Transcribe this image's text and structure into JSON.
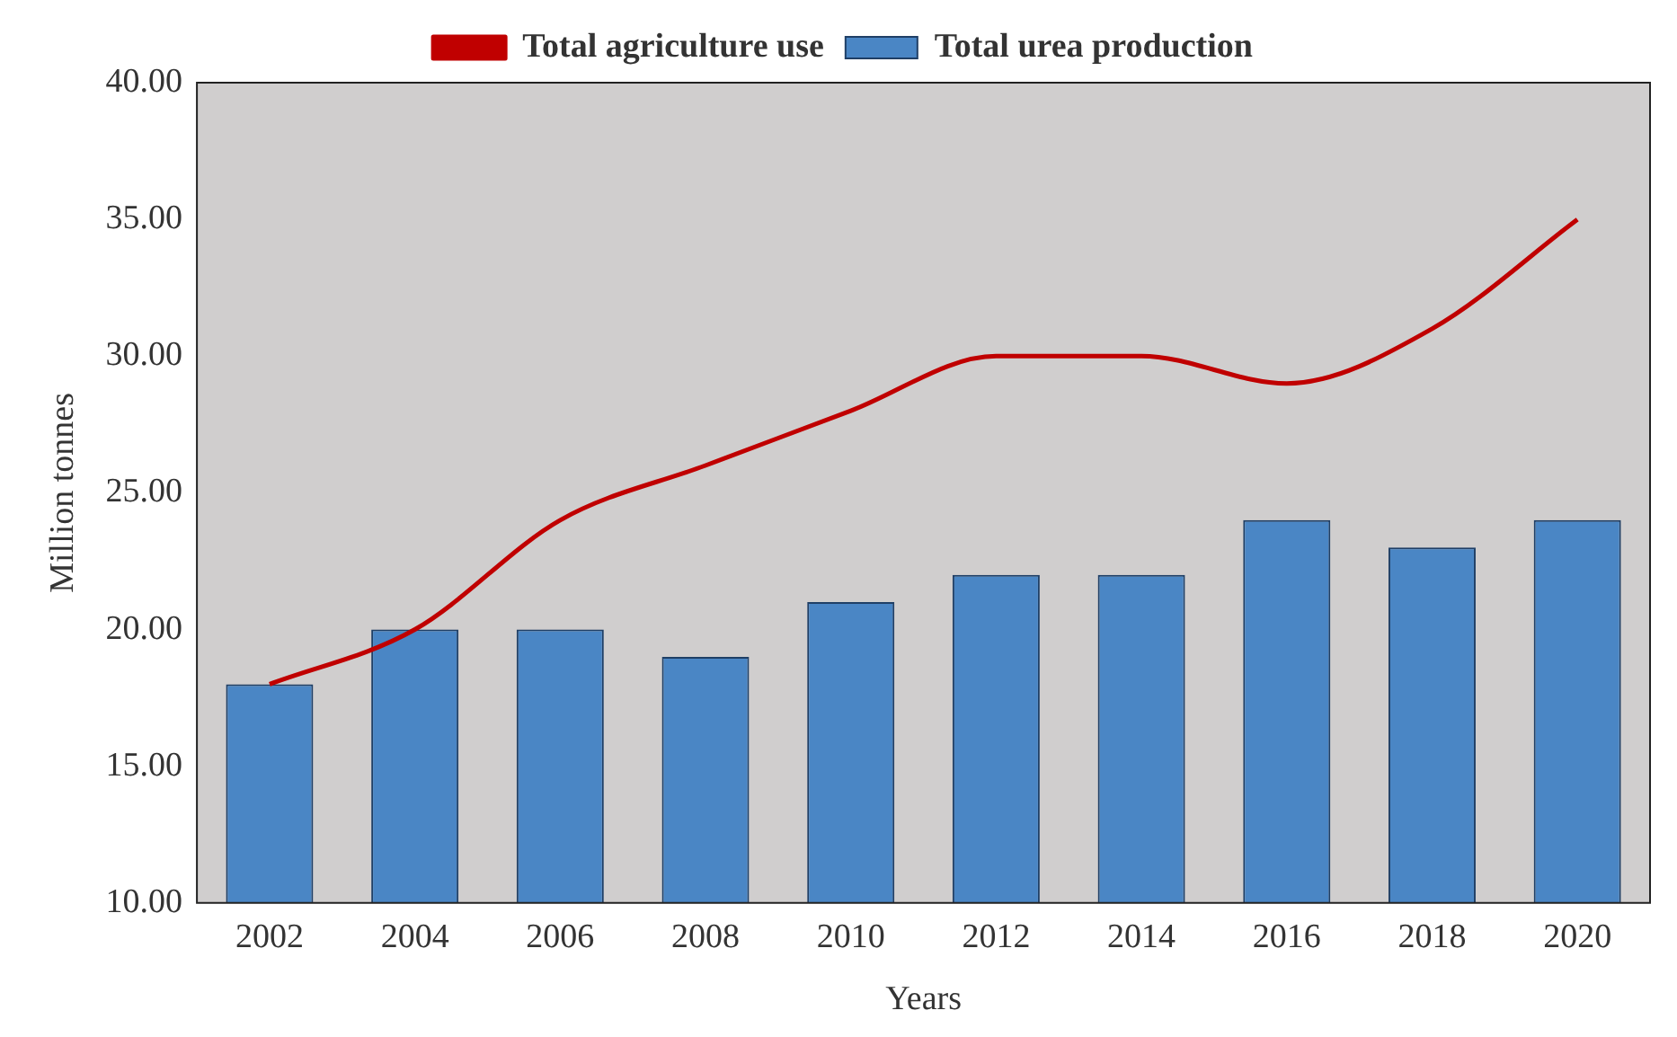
{
  "chart_data": {
    "type": "bar",
    "xlabel": "Years",
    "ylabel": "Million tonnes",
    "categories": [
      "2002",
      "2004",
      "2006",
      "2008",
      "2010",
      "2012",
      "2014",
      "2016",
      "2018",
      "2020"
    ],
    "series": [
      {
        "name": "Total urea production",
        "color": "#4a86c5",
        "values": [
          18,
          20,
          20,
          19,
          21,
          22,
          22,
          24,
          23,
          24
        ]
      },
      {
        "name": "Total agriculture use",
        "type": "line",
        "color": "#c00000",
        "values": [
          18,
          20,
          24,
          26,
          28,
          30,
          30,
          29,
          31,
          35
        ]
      }
    ],
    "ylim": [
      10,
      40
    ],
    "yticks": [
      {
        "value": 10,
        "label": "10.00"
      },
      {
        "value": 15,
        "label": "15.00"
      },
      {
        "value": 20,
        "label": "20.00"
      },
      {
        "value": 25,
        "label": "25.00"
      },
      {
        "value": 30,
        "label": "30.00"
      },
      {
        "value": 35,
        "label": "35.00"
      },
      {
        "value": 40,
        "label": "40.00"
      }
    ],
    "grid": false,
    "legend": "top",
    "marker": "none",
    "line_style": "solid"
  }
}
